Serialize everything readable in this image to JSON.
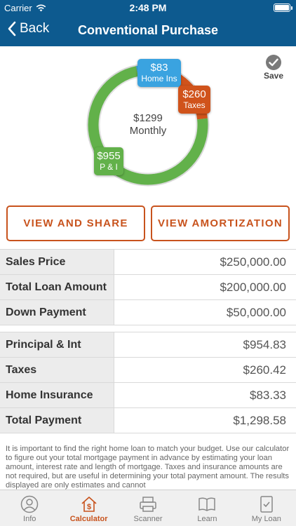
{
  "status_bar": {
    "carrier": "Carrier",
    "time": "2:48 PM",
    "wifi_icon": "wifi-icon",
    "battery_icon": "battery-icon"
  },
  "nav": {
    "back_label": "Back",
    "title": "Conventional Purchase",
    "back_icon": "chevron-left-icon"
  },
  "summary": {
    "total": "$1299",
    "period": "Monthly",
    "save_label": "Save",
    "segments": [
      {
        "amount": "$955",
        "label": "P & I",
        "value": 954.83,
        "color": "#62b14a"
      },
      {
        "amount": "$260",
        "label": "Taxes",
        "value": 260.42,
        "color": "#d0531b"
      },
      {
        "amount": "$83",
        "label": "Home Ins",
        "value": 83.33,
        "color": "#3aa3e0"
      }
    ]
  },
  "buttons": {
    "share": "VIEW AND SHARE",
    "amortization": "VIEW AMORTIZATION"
  },
  "loan_table": [
    {
      "label": "Sales Price",
      "value": "$250,000.00"
    },
    {
      "label": "Total Loan Amount",
      "value": "$200,000.00"
    },
    {
      "label": "Down Payment",
      "value": "$50,000.00"
    }
  ],
  "payment_table": [
    {
      "label": "Principal & Int",
      "value": "$954.83"
    },
    {
      "label": "Taxes",
      "value": "$260.42"
    },
    {
      "label": "Home Insurance",
      "value": "$83.33"
    },
    {
      "label": "Total Payment",
      "value": "$1,298.58"
    }
  ],
  "disclaimer": "It is important to find the right home loan to match your budget. Use our calculator to figure out your total mortgage payment in advance by estimating your loan amount, interest rate and length of mortgage. Taxes and insurance amounts are not required, but are useful in determining your total payment amount.  The results displayed are only estimates and cannot",
  "tabs": [
    {
      "label": "Info",
      "icon": "person-icon",
      "active": false
    },
    {
      "label": "Calculator",
      "icon": "house-dollar-icon",
      "active": true
    },
    {
      "label": "Scanner",
      "icon": "scanner-icon",
      "active": false
    },
    {
      "label": "Learn",
      "icon": "book-icon",
      "active": false
    },
    {
      "label": "My Loan",
      "icon": "document-check-icon",
      "active": false
    }
  ],
  "colors": {
    "nav": "#0d5a8f",
    "accent": "#c8531d",
    "pi": "#62b14a",
    "taxes": "#d0531b",
    "ins": "#3aa3e0"
  }
}
